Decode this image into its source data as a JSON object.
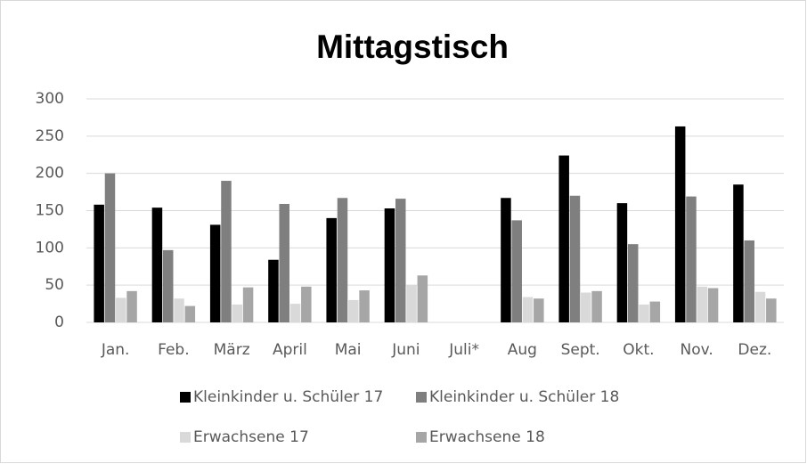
{
  "chart_data": {
    "type": "bar",
    "title": "Mittagstisch",
    "categories": [
      "Jan.",
      "Feb.",
      "März",
      "April",
      "Mai",
      "Juni",
      "Juli*",
      "Aug",
      "Sept.",
      "Okt.",
      "Nov.",
      "Dez."
    ],
    "series": [
      {
        "name": "Kleinkinder u. Schüler 17",
        "color": "#000000",
        "values": [
          158,
          154,
          131,
          84,
          140,
          153,
          null,
          167,
          224,
          160,
          263,
          185
        ]
      },
      {
        "name": "Kleinkinder u. Schüler 18",
        "color": "#7f7f7f",
        "values": [
          200,
          97,
          190,
          159,
          167,
          166,
          null,
          137,
          170,
          105,
          169,
          110
        ]
      },
      {
        "name": "Erwachsene 17",
        "color": "#d9d9d9",
        "values": [
          33,
          32,
          24,
          25,
          30,
          50,
          null,
          34,
          40,
          24,
          48,
          41
        ]
      },
      {
        "name": "Erwachsene 18",
        "color": "#a6a6a6",
        "values": [
          42,
          22,
          47,
          48,
          43,
          63,
          null,
          32,
          42,
          28,
          46,
          32
        ]
      }
    ],
    "ylim": [
      0,
      300
    ],
    "yticks": [
      0,
      50,
      100,
      150,
      200,
      250,
      300
    ],
    "grid": true,
    "legend": "bottom"
  }
}
